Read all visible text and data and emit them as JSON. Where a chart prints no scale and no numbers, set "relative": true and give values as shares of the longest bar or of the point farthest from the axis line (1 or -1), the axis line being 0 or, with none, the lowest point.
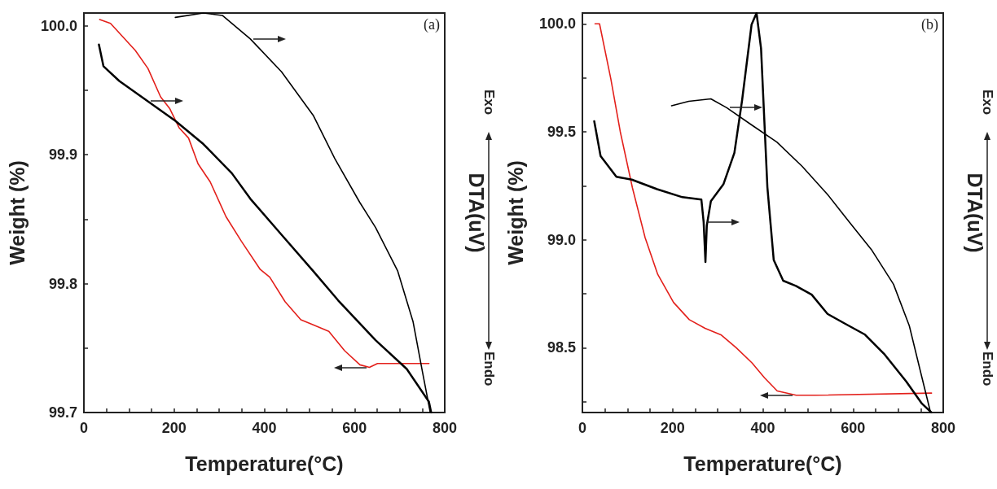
{
  "chart_data": [
    {
      "type": "line",
      "xlabel": "Temperature(°C)",
      "ylabel": "Weight (%)",
      "annotations": [
        "(a)"
      ],
      "xlim": [
        0,
        800
      ],
      "ylim": [
        99.7,
        100.01
      ],
      "xticks": [
        0,
        {
          "value": 50,
          "label": null
        },
        {
          "value": 100,
          "label": null
        },
        {
          "value": 150,
          "label": null
        },
        200,
        {
          "value": 250,
          "label": null
        },
        {
          "value": 300,
          "label": null
        },
        {
          "value": 350,
          "label": null
        },
        400,
        {
          "value": 450,
          "label": null
        },
        {
          "value": 500,
          "label": null
        },
        {
          "value": 550,
          "label": null
        },
        600,
        {
          "value": 650,
          "label": null
        },
        {
          "value": 700,
          "label": null
        },
        {
          "value": 750,
          "label": null
        },
        800
      ],
      "yticks": [
        99.7,
        {
          "value": 99.75,
          "label": null
        },
        99.8,
        {
          "value": 99.85,
          "label": null
        },
        99.9,
        {
          "value": 99.95,
          "label": null
        },
        {
          "value": 100,
          "label": "100.0"
        }
      ],
      "grid": false,
      "marker": "none",
      "series": [
        {
          "color": "#e3201b",
          "x": [
            35,
            59,
            114,
            142,
            170,
            190,
            211,
            232,
            253,
            280,
            315,
            349,
            391,
            412,
            446,
            481,
            502,
            543,
            578,
            612,
            633,
            651,
            765
          ],
          "values": [
            100.005,
            100.002,
            99.981,
            99.967,
            99.945,
            99.936,
            99.921,
            99.913,
            99.893,
            99.879,
            99.852,
            99.833,
            99.811,
            99.805,
            99.786,
            99.772,
            99.769,
            99.763,
            99.748,
            99.737,
            99.735,
            99.738,
            99.738
          ]
        }
      ]
    },
    {
      "type": "line",
      "relative": true,
      "ylabel": "DTA(uV)",
      "annotations": [
        "Exo",
        "Endo"
      ],
      "xlim": [
        0,
        800
      ],
      "grid": false,
      "marker": "none",
      "series": [
        {
          "color": "#000000",
          "x": [
            35,
            45,
            80,
            142,
            204,
            266,
            329,
            370,
            439,
            509,
            564,
            647,
            716,
            765,
            770
          ],
          "values": [
            0.921,
            0.867,
            0.83,
            0.78,
            0.73,
            0.672,
            0.599,
            0.535,
            0.445,
            0.354,
            0.281,
            0.181,
            0.109,
            0.027,
            0
          ]
        },
        {
          "color": "#000000",
          "x": [
            204,
            266,
            308,
            370,
            439,
            509,
            557,
            612,
            647,
            696,
            730,
            751,
            768
          ],
          "values": [
            0.989,
            1,
            0.994,
            0.935,
            0.853,
            0.744,
            0.635,
            0.526,
            0.463,
            0.354,
            0.227,
            0.1,
            0
          ]
        }
      ]
    },
    {
      "type": "line",
      "xlabel": "Temperature(°C)",
      "ylabel": "Weight (%)",
      "annotations": [
        "(b)"
      ],
      "xlim": [
        0,
        800
      ],
      "ylim": [
        98.2,
        100.05
      ],
      "xticks": [
        0,
        {
          "value": 50,
          "label": null
        },
        {
          "value": 100,
          "label": null
        },
        {
          "value": 150,
          "label": null
        },
        200,
        {
          "value": 250,
          "label": null
        },
        {
          "value": 300,
          "label": null
        },
        {
          "value": 350,
          "label": null
        },
        400,
        {
          "value": 450,
          "label": null
        },
        {
          "value": 500,
          "label": null
        },
        {
          "value": 550,
          "label": null
        },
        600,
        {
          "value": 650,
          "label": null
        },
        {
          "value": 700,
          "label": null
        },
        {
          "value": 750,
          "label": null
        },
        800
      ],
      "yticks": [
        {
          "value": 98.25,
          "label": null
        },
        98.5,
        {
          "value": 98.75,
          "label": null
        },
        {
          "value": 99,
          "label": "99.0"
        },
        {
          "value": 99.25,
          "label": null
        },
        99.5,
        {
          "value": 99.75,
          "label": null
        },
        {
          "value": 100,
          "label": "100.0"
        }
      ],
      "grid": false,
      "marker": "none",
      "series": [
        {
          "color": "#e3201b",
          "x": [
            28,
            38,
            63,
            84,
            111,
            139,
            167,
            202,
            237,
            272,
            307,
            341,
            376,
            404,
            432,
            474,
            516,
            774
          ],
          "values": [
            100.0,
            100.0,
            99.745,
            99.5,
            99.24,
            99.01,
            98.84,
            98.71,
            98.63,
            98.59,
            98.56,
            98.5,
            98.43,
            98.36,
            98.3,
            98.28,
            98.28,
            98.29
          ]
        }
      ]
    },
    {
      "type": "line",
      "relative": true,
      "ylabel": "DTA(uV)",
      "annotations": [
        "Exo",
        "Endo"
      ],
      "xlim": [
        0,
        800
      ],
      "grid": false,
      "marker": "none",
      "series": [
        {
          "color": "#000000",
          "x": [
            28,
            42,
            77,
            111,
            167,
            223,
            265,
            270,
            274,
            277,
            286,
            314,
            338,
            355,
            376,
            387,
            397,
            411,
            425,
            446,
            474,
            509,
            544,
            585,
            627,
            669,
            718,
            753,
            774
          ],
          "values": [
            0.729,
            0.642,
            0.59,
            0.583,
            0.559,
            0.539,
            0.533,
            0.477,
            0.377,
            0.468,
            0.529,
            0.572,
            0.65,
            0.781,
            0.971,
            1,
            0.911,
            0.564,
            0.382,
            0.33,
            0.317,
            0.295,
            0.247,
            0.221,
            0.195,
            0.147,
            0.078,
            0.022,
            0
          ]
        },
        {
          "color": "#000000",
          "x": [
            199,
            237,
            286,
            321,
            376,
            432,
            488,
            544,
            592,
            641,
            690,
            725,
            753,
            772
          ],
          "values": [
            0.768,
            0.779,
            0.785,
            0.763,
            0.72,
            0.677,
            0.616,
            0.546,
            0.477,
            0.408,
            0.321,
            0.217,
            0.087,
            0
          ]
        }
      ]
    }
  ]
}
